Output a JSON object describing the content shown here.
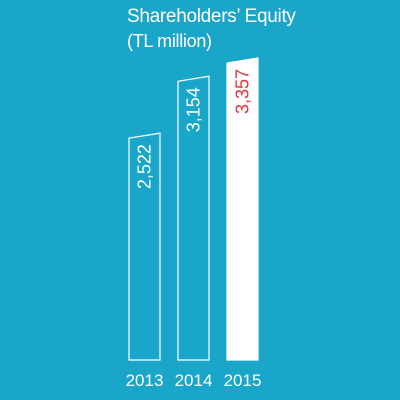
{
  "chart_data": {
    "type": "bar",
    "title": "Shareholders’ Equity",
    "subtitle": "(TL million)",
    "categories": [
      "2013",
      "2014",
      "2015"
    ],
    "values": [
      2522,
      3154,
      3357
    ],
    "value_labels": [
      "2,522",
      "3,154",
      "3,357"
    ],
    "ylim": [
      0,
      3357
    ],
    "grid": false,
    "legend": "none",
    "colors": {
      "background": "#1aa6c9",
      "bar_outline": "#ffffff",
      "highlight_fill": "#ffffff",
      "highlight_label": "#e3323c",
      "label": "#ffffff"
    },
    "highlight_index": 2
  }
}
